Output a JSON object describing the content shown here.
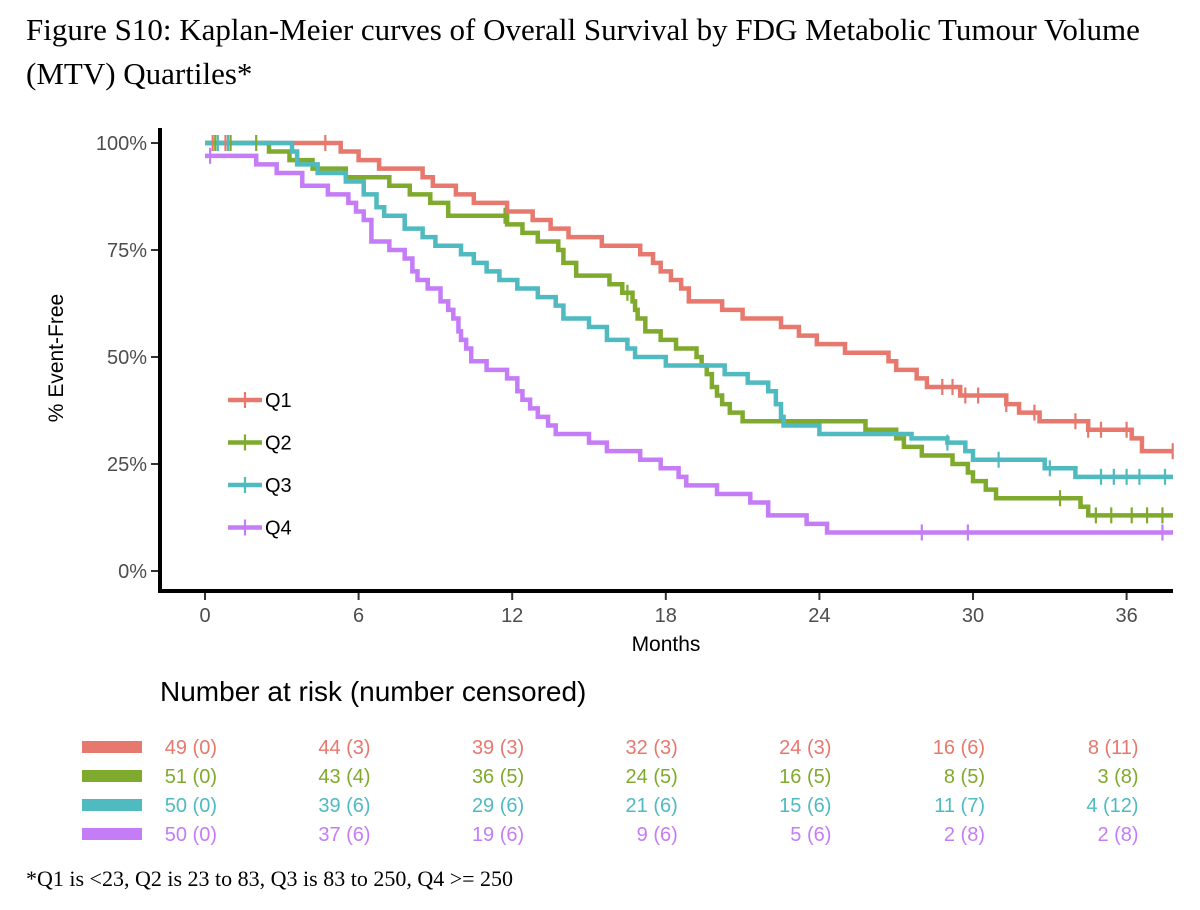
{
  "figure_title": "Figure S10: Kaplan-Meier curves of Overall Survival by FDG Metabolic Tumour Volume (MTV) Quartiles*",
  "footnote": "*Q1 is <23, Q2 is 23 to 83, Q3 is 83 to 250, Q4 >= 250",
  "chart_data": {
    "type": "line",
    "subtype": "kaplan-meier step",
    "xlabel": "Months",
    "ylabel": "% Event-Free",
    "xlim": [
      -1.8,
      38
    ],
    "ylim": [
      -5,
      103
    ],
    "x_ticks": [
      0,
      6,
      12,
      18,
      24,
      30,
      36
    ],
    "y_ticks": [
      0,
      25,
      50,
      75,
      100
    ],
    "y_tick_labels": [
      "0%",
      "25%",
      "50%",
      "75%",
      "100%"
    ],
    "legend_position": "left-center inside",
    "series": [
      {
        "name": "Q1",
        "color": "#e7786e",
        "steps": [
          [
            0,
            100
          ],
          [
            5.3,
            98
          ],
          [
            6.0,
            96
          ],
          [
            6.8,
            94
          ],
          [
            8.5,
            92
          ],
          [
            8.9,
            90
          ],
          [
            9.8,
            88
          ],
          [
            10.5,
            86
          ],
          [
            11.8,
            84
          ],
          [
            12.8,
            82
          ],
          [
            13.5,
            80
          ],
          [
            14.2,
            78
          ],
          [
            15.5,
            76
          ],
          [
            17.0,
            74
          ],
          [
            17.5,
            72
          ],
          [
            17.8,
            70
          ],
          [
            18.2,
            68
          ],
          [
            18.6,
            66
          ],
          [
            18.9,
            63
          ],
          [
            20.2,
            61
          ],
          [
            21.0,
            59
          ],
          [
            22.5,
            57
          ],
          [
            23.2,
            55
          ],
          [
            23.9,
            53
          ],
          [
            25.0,
            51
          ],
          [
            26.7,
            49
          ],
          [
            27.0,
            47
          ],
          [
            27.8,
            45
          ],
          [
            28.2,
            43
          ],
          [
            29.5,
            41
          ],
          [
            31.3,
            39
          ],
          [
            31.8,
            37
          ],
          [
            32.6,
            35
          ],
          [
            34.5,
            33
          ],
          [
            36.2,
            31
          ],
          [
            36.6,
            28
          ]
        ],
        "end": 38,
        "censor_x": [
          0.3,
          0.8,
          4.7,
          28.8,
          29.2,
          29.7,
          30.2,
          31.3,
          32.4,
          34.0,
          34.5,
          35.0,
          36.0,
          37.8
        ]
      },
      {
        "name": "Q2",
        "color": "#7faa2d",
        "steps": [
          [
            0,
            100
          ],
          [
            2.5,
            98
          ],
          [
            3.3,
            96
          ],
          [
            4.2,
            94
          ],
          [
            5.5,
            92
          ],
          [
            7.2,
            90
          ],
          [
            8.0,
            88
          ],
          [
            8.8,
            86
          ],
          [
            9.5,
            83
          ],
          [
            11.8,
            81
          ],
          [
            12.4,
            79
          ],
          [
            13.0,
            77
          ],
          [
            13.8,
            75
          ],
          [
            14.0,
            72
          ],
          [
            14.5,
            69
          ],
          [
            15.8,
            67
          ],
          [
            16.3,
            65
          ],
          [
            16.7,
            63
          ],
          [
            16.8,
            61
          ],
          [
            16.9,
            59
          ],
          [
            17.2,
            56
          ],
          [
            17.8,
            54
          ],
          [
            18.4,
            52
          ],
          [
            19.2,
            50
          ],
          [
            19.4,
            48
          ],
          [
            19.6,
            46
          ],
          [
            19.8,
            43
          ],
          [
            20.0,
            41
          ],
          [
            20.2,
            39
          ],
          [
            20.5,
            37
          ],
          [
            21.0,
            35
          ],
          [
            25.8,
            33
          ],
          [
            27.0,
            31
          ],
          [
            27.3,
            29
          ],
          [
            28.0,
            27
          ],
          [
            29.2,
            25
          ],
          [
            29.8,
            23
          ],
          [
            30.0,
            21
          ],
          [
            30.5,
            19
          ],
          [
            30.9,
            17
          ],
          [
            34.2,
            15
          ],
          [
            34.5,
            13
          ]
        ],
        "end": 38,
        "censor_x": [
          0.4,
          1.0,
          2.0,
          11.7,
          16.5,
          33.4,
          34.8,
          35.4,
          36.2,
          36.8,
          37.4
        ]
      },
      {
        "name": "Q3",
        "color": "#4fbac0",
        "steps": [
          [
            0,
            100
          ],
          [
            3.4,
            98
          ],
          [
            3.6,
            95
          ],
          [
            4.4,
            93
          ],
          [
            5.5,
            91
          ],
          [
            6.2,
            88
          ],
          [
            6.7,
            85
          ],
          [
            7.0,
            83
          ],
          [
            7.8,
            80
          ],
          [
            8.5,
            78
          ],
          [
            9.0,
            76
          ],
          [
            10.0,
            74
          ],
          [
            10.5,
            72
          ],
          [
            11.0,
            70
          ],
          [
            11.5,
            68
          ],
          [
            12.2,
            66
          ],
          [
            13.0,
            64
          ],
          [
            13.7,
            62
          ],
          [
            14.0,
            59
          ],
          [
            15.0,
            57
          ],
          [
            15.7,
            54
          ],
          [
            16.5,
            52
          ],
          [
            16.8,
            50
          ],
          [
            18.0,
            48
          ],
          [
            20.3,
            46
          ],
          [
            21.2,
            44
          ],
          [
            22.0,
            42
          ],
          [
            22.3,
            39
          ],
          [
            22.5,
            36
          ],
          [
            22.6,
            34
          ],
          [
            24.0,
            32
          ],
          [
            27.6,
            31
          ],
          [
            29.0,
            30
          ],
          [
            29.7,
            28
          ],
          [
            30.0,
            26
          ],
          [
            32.8,
            24
          ],
          [
            34.0,
            22
          ]
        ],
        "end": 38,
        "censor_x": [
          0.5,
          0.9,
          29.0,
          31.0,
          33.0,
          35.0,
          35.5,
          36.0,
          36.5,
          37.5
        ]
      },
      {
        "name": "Q4",
        "color": "#c47cf7",
        "steps": [
          [
            0,
            97
          ],
          [
            2.0,
            95
          ],
          [
            2.8,
            93
          ],
          [
            3.8,
            90
          ],
          [
            4.8,
            88
          ],
          [
            5.6,
            86
          ],
          [
            5.9,
            84
          ],
          [
            6.2,
            82
          ],
          [
            6.5,
            80
          ],
          [
            6.5,
            77
          ],
          [
            7.2,
            75
          ],
          [
            7.8,
            73
          ],
          [
            8.1,
            70
          ],
          [
            8.3,
            68
          ],
          [
            8.7,
            66
          ],
          [
            9.2,
            63
          ],
          [
            9.5,
            61
          ],
          [
            9.7,
            59
          ],
          [
            9.9,
            56
          ],
          [
            10.0,
            54
          ],
          [
            10.2,
            52
          ],
          [
            10.4,
            49
          ],
          [
            11.0,
            47
          ],
          [
            11.8,
            45
          ],
          [
            12.2,
            42
          ],
          [
            12.4,
            40
          ],
          [
            12.7,
            38
          ],
          [
            13.0,
            36
          ],
          [
            13.4,
            34
          ],
          [
            13.7,
            32
          ],
          [
            15.0,
            30
          ],
          [
            15.7,
            28
          ],
          [
            17.0,
            26
          ],
          [
            17.8,
            24
          ],
          [
            18.5,
            22
          ],
          [
            18.8,
            20
          ],
          [
            20.0,
            18
          ],
          [
            21.3,
            16
          ],
          [
            22.0,
            13
          ],
          [
            23.5,
            11
          ],
          [
            24.3,
            9
          ]
        ],
        "end": 38,
        "censor_x": [
          0.2,
          28.0,
          29.8,
          37.4
        ]
      }
    ],
    "risk_table": {
      "title": "Number at risk (number censored)",
      "rows": [
        {
          "group": "Q1",
          "color": "#e7786e",
          "values": [
            "49 (0)",
            "44 (3)",
            "39 (3)",
            "32 (3)",
            "24 (3)",
            "16 (6)",
            "8 (11)"
          ]
        },
        {
          "group": "Q2",
          "color": "#7faa2d",
          "values": [
            "51 (0)",
            "43 (4)",
            "36 (5)",
            "24 (5)",
            "16 (5)",
            "8 (5)",
            "3 (8)"
          ]
        },
        {
          "group": "Q3",
          "color": "#4fbac0",
          "values": [
            "50 (0)",
            "39 (6)",
            "29 (6)",
            "21 (6)",
            "15 (6)",
            "11 (7)",
            "4 (12)"
          ]
        },
        {
          "group": "Q4",
          "color": "#c47cf7",
          "values": [
            "50 (0)",
            "37 (6)",
            "19 (6)",
            "9 (6)",
            "5 (6)",
            "2 (8)",
            "2 (8)"
          ]
        }
      ]
    }
  }
}
